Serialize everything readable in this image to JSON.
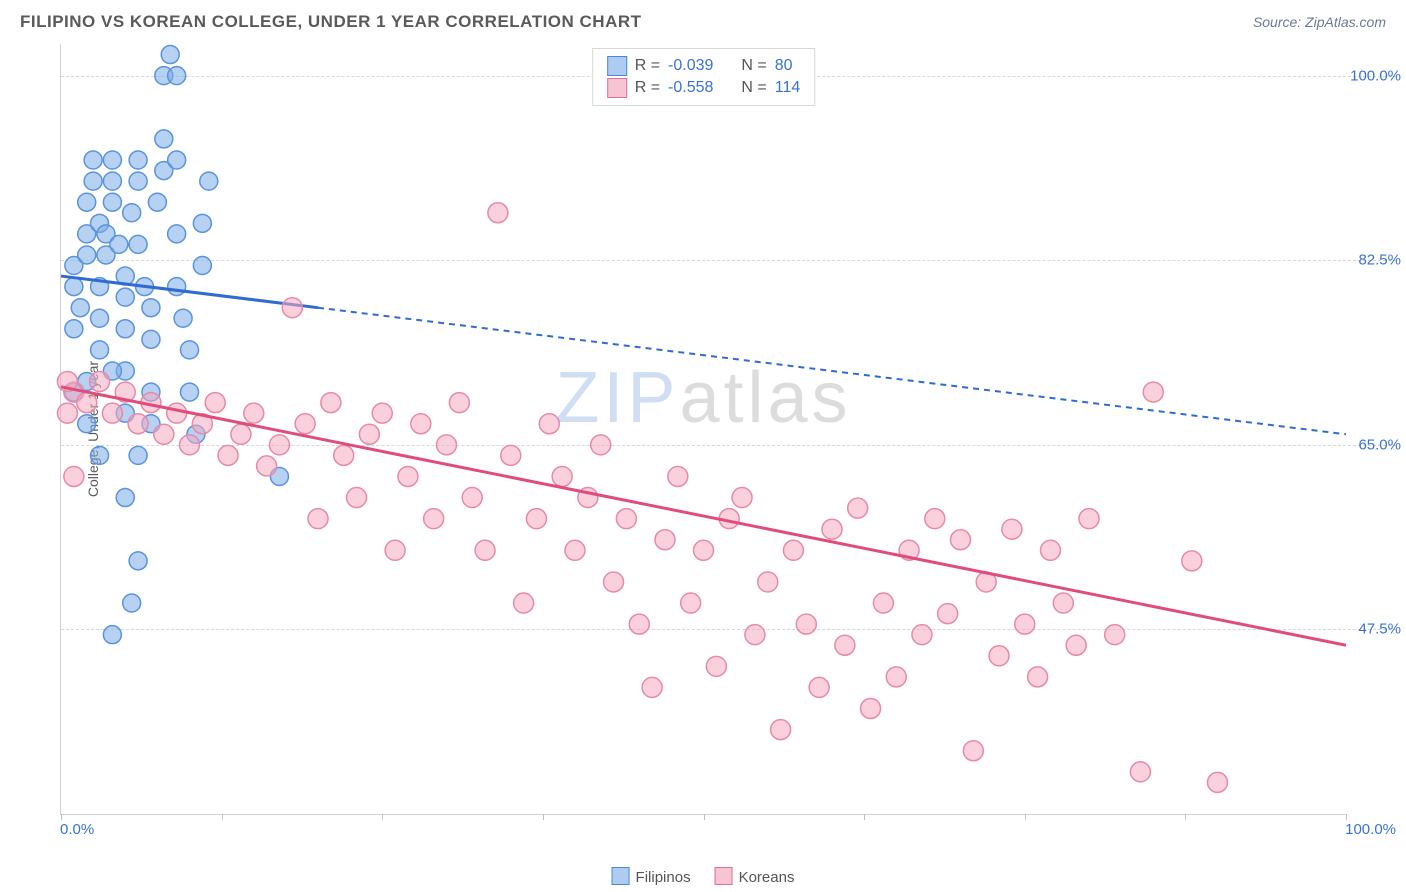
{
  "header": {
    "title": "FILIPINO VS KOREAN COLLEGE, UNDER 1 YEAR CORRELATION CHART",
    "source_prefix": "Source: ",
    "source_name": "ZipAtlas.com"
  },
  "chart": {
    "type": "scatter",
    "y_axis_title": "College, Under 1 year",
    "background_color": "#ffffff",
    "grid_color": "#d8d8d8",
    "axis_color": "#d0d0d0",
    "x_range": [
      0,
      100
    ],
    "y_range": [
      30,
      103
    ],
    "x_ticks": [
      0,
      12.5,
      25,
      37.5,
      50,
      62.5,
      75,
      87.5,
      100
    ],
    "x_tick_labels": {
      "min": "0.0%",
      "max": "100.0%"
    },
    "y_gridlines": [
      47.5,
      65.0,
      82.5,
      100.0
    ],
    "y_tick_labels": [
      "47.5%",
      "65.0%",
      "82.5%",
      "100.0%"
    ],
    "tick_label_color": "#3a72d4",
    "watermark": {
      "z": "ZIP",
      "rest": "atlas"
    },
    "legend_top": {
      "rows": [
        {
          "swatch_fill": "#aeccf2",
          "swatch_border": "#4b86db",
          "r_label": "R = ",
          "r_value": "-0.039",
          "n_label": "N = ",
          "n_value": "80"
        },
        {
          "swatch_fill": "#f6c4d2",
          "swatch_border": "#e16f93",
          "r_label": "R = ",
          "r_value": "-0.558",
          "n_label": "N = ",
          "n_value": "114"
        }
      ]
    },
    "legend_bottom": {
      "items": [
        {
          "swatch_fill": "#aeccf2",
          "swatch_border": "#4b86db",
          "label": "Filipinos"
        },
        {
          "swatch_fill": "#f6c4d2",
          "swatch_border": "#e16f93",
          "label": "Koreans"
        }
      ]
    },
    "series": [
      {
        "name": "Filipinos",
        "marker_fill": "rgba(124,172,232,0.55)",
        "marker_stroke": "#5a94dd",
        "marker_radius": 9,
        "trend": {
          "stroke": "#2f6bd0",
          "width": 3,
          "solid_to_x": 20,
          "start_y": 81.0,
          "end_y": 66.0,
          "dash": "6,5"
        },
        "points": [
          [
            1,
            80
          ],
          [
            1,
            82
          ],
          [
            1.5,
            78
          ],
          [
            2,
            83
          ],
          [
            2,
            85
          ],
          [
            2,
            88
          ],
          [
            2.5,
            90
          ],
          [
            2.5,
            92
          ],
          [
            3,
            86
          ],
          [
            3,
            80
          ],
          [
            3,
            77
          ],
          [
            3.5,
            83
          ],
          [
            3.5,
            85
          ],
          [
            4,
            88
          ],
          [
            4,
            90
          ],
          [
            4,
            92
          ],
          [
            4.5,
            84
          ],
          [
            5,
            81
          ],
          [
            5,
            79
          ],
          [
            5,
            76
          ],
          [
            5,
            72
          ],
          [
            5.5,
            87
          ],
          [
            6,
            90
          ],
          [
            6,
            92
          ],
          [
            6,
            84
          ],
          [
            6.5,
            80
          ],
          [
            7,
            78
          ],
          [
            7,
            75
          ],
          [
            7,
            70
          ],
          [
            7,
            67
          ],
          [
            7.5,
            88
          ],
          [
            8,
            91
          ],
          [
            8,
            94
          ],
          [
            8,
            100
          ],
          [
            8.5,
            102
          ],
          [
            9,
            100
          ],
          [
            9,
            92
          ],
          [
            9,
            85
          ],
          [
            9,
            80
          ],
          [
            9.5,
            77
          ],
          [
            10,
            74
          ],
          [
            10,
            70
          ],
          [
            10.5,
            66
          ],
          [
            11,
            82
          ],
          [
            11,
            86
          ],
          [
            11.5,
            90
          ],
          [
            3,
            74
          ],
          [
            4,
            72
          ],
          [
            5,
            68
          ],
          [
            6,
            64
          ],
          [
            5,
            60
          ],
          [
            6,
            54
          ],
          [
            4,
            47
          ],
          [
            2,
            71
          ],
          [
            2,
            67
          ],
          [
            3,
            64
          ],
          [
            1,
            70
          ],
          [
            1,
            76
          ],
          [
            5.5,
            50
          ],
          [
            17,
            62
          ]
        ]
      },
      {
        "name": "Koreans",
        "marker_fill": "rgba(244,170,192,0.55)",
        "marker_stroke": "#e78aa8",
        "marker_radius": 10,
        "trend": {
          "stroke": "#e04d7d",
          "width": 3,
          "solid_to_x": 100,
          "start_y": 70.5,
          "end_y": 46.0,
          "dash": null
        },
        "points": [
          [
            1,
            70
          ],
          [
            2,
            69
          ],
          [
            3,
            71
          ],
          [
            4,
            68
          ],
          [
            5,
            70
          ],
          [
            6,
            67
          ],
          [
            7,
            69
          ],
          [
            8,
            66
          ],
          [
            9,
            68
          ],
          [
            10,
            65
          ],
          [
            11,
            67
          ],
          [
            12,
            69
          ],
          [
            13,
            64
          ],
          [
            14,
            66
          ],
          [
            15,
            68
          ],
          [
            16,
            63
          ],
          [
            17,
            65
          ],
          [
            18,
            78
          ],
          [
            19,
            67
          ],
          [
            20,
            58
          ],
          [
            21,
            69
          ],
          [
            22,
            64
          ],
          [
            23,
            60
          ],
          [
            24,
            66
          ],
          [
            25,
            68
          ],
          [
            26,
            55
          ],
          [
            27,
            62
          ],
          [
            28,
            67
          ],
          [
            29,
            58
          ],
          [
            30,
            65
          ],
          [
            31,
            69
          ],
          [
            32,
            60
          ],
          [
            33,
            55
          ],
          [
            34,
            87
          ],
          [
            35,
            64
          ],
          [
            36,
            50
          ],
          [
            37,
            58
          ],
          [
            38,
            67
          ],
          [
            39,
            62
          ],
          [
            40,
            55
          ],
          [
            41,
            60
          ],
          [
            42,
            65
          ],
          [
            43,
            52
          ],
          [
            44,
            58
          ],
          [
            45,
            48
          ],
          [
            46,
            42
          ],
          [
            47,
            56
          ],
          [
            48,
            62
          ],
          [
            49,
            50
          ],
          [
            50,
            55
          ],
          [
            51,
            44
          ],
          [
            52,
            58
          ],
          [
            53,
            60
          ],
          [
            54,
            47
          ],
          [
            55,
            52
          ],
          [
            56,
            38
          ],
          [
            57,
            55
          ],
          [
            58,
            48
          ],
          [
            59,
            42
          ],
          [
            60,
            57
          ],
          [
            61,
            46
          ],
          [
            62,
            59
          ],
          [
            63,
            40
          ],
          [
            64,
            50
          ],
          [
            65,
            43
          ],
          [
            66,
            55
          ],
          [
            67,
            47
          ],
          [
            68,
            58
          ],
          [
            69,
            49
          ],
          [
            70,
            56
          ],
          [
            71,
            36
          ],
          [
            72,
            52
          ],
          [
            73,
            45
          ],
          [
            74,
            57
          ],
          [
            75,
            48
          ],
          [
            76,
            43
          ],
          [
            77,
            55
          ],
          [
            78,
            50
          ],
          [
            79,
            46
          ],
          [
            80,
            58
          ],
          [
            82,
            47
          ],
          [
            84,
            34
          ],
          [
            85,
            70
          ],
          [
            88,
            54
          ],
          [
            90,
            33
          ],
          [
            0.5,
            71
          ],
          [
            0.5,
            68
          ],
          [
            1,
            62
          ]
        ]
      }
    ]
  }
}
